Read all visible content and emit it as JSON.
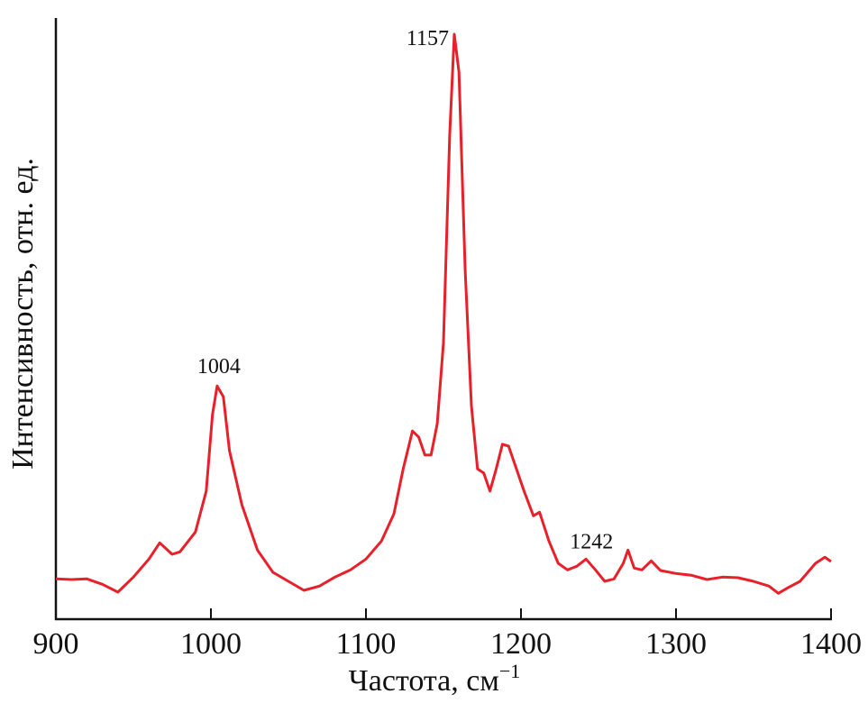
{
  "chart_data": {
    "type": "line",
    "title": "",
    "xlabel": "Частота, см",
    "xlabel_sup": "−1",
    "ylabel": "Интенсивность, отн. ед.",
    "xlim": [
      900,
      1400
    ],
    "ylim": [
      0,
      1
    ],
    "xticks": [
      900,
      1000,
      1100,
      1200,
      1300,
      1400
    ],
    "xtick_labels": [
      "900",
      "1000",
      "1100",
      "1200",
      "1300",
      "1400"
    ],
    "grid": false,
    "line_color": "#e8202a",
    "series": [
      {
        "x": [
          900,
          910,
          920,
          930,
          940,
          950,
          960,
          967,
          975,
          980,
          990,
          997,
          1001,
          1004,
          1008,
          1012,
          1020,
          1030,
          1040,
          1050,
          1060,
          1070,
          1080,
          1090,
          1100,
          1110,
          1118,
          1124,
          1130,
          1134,
          1138,
          1142,
          1146,
          1150,
          1154,
          1157,
          1160,
          1164,
          1168,
          1172,
          1176,
          1180,
          1184,
          1188,
          1192,
          1196,
          1202,
          1208,
          1212,
          1218,
          1224,
          1230,
          1236,
          1242,
          1248,
          1254,
          1260,
          1266,
          1269,
          1273,
          1278,
          1284,
          1290,
          1300,
          1310,
          1320,
          1330,
          1340,
          1350,
          1360,
          1366,
          1372,
          1380,
          1390,
          1396,
          1400
        ],
        "y": [
          0.067,
          0.066,
          0.067,
          0.058,
          0.045,
          0.07,
          0.1,
          0.127,
          0.108,
          0.112,
          0.145,
          0.213,
          0.34,
          0.388,
          0.37,
          0.28,
          0.19,
          0.115,
          0.078,
          0.063,
          0.048,
          0.055,
          0.07,
          0.082,
          0.1,
          0.13,
          0.175,
          0.25,
          0.313,
          0.303,
          0.273,
          0.273,
          0.325,
          0.46,
          0.805,
          0.973,
          0.91,
          0.58,
          0.355,
          0.25,
          0.243,
          0.213,
          0.25,
          0.291,
          0.288,
          0.258,
          0.213,
          0.172,
          0.178,
          0.13,
          0.093,
          0.082,
          0.088,
          0.1,
          0.082,
          0.063,
          0.067,
          0.093,
          0.115,
          0.085,
          0.082,
          0.097,
          0.081,
          0.076,
          0.073,
          0.066,
          0.07,
          0.069,
          0.063,
          0.055,
          0.043,
          0.052,
          0.063,
          0.093,
          0.103,
          0.096
        ]
      }
    ],
    "annotations": [
      {
        "text": "1004",
        "x": 1004,
        "y": 0.388
      },
      {
        "text": "1157",
        "x": 1157,
        "y": 0.973
      },
      {
        "text": "1242",
        "x": 1242,
        "y": 0.1
      }
    ]
  }
}
